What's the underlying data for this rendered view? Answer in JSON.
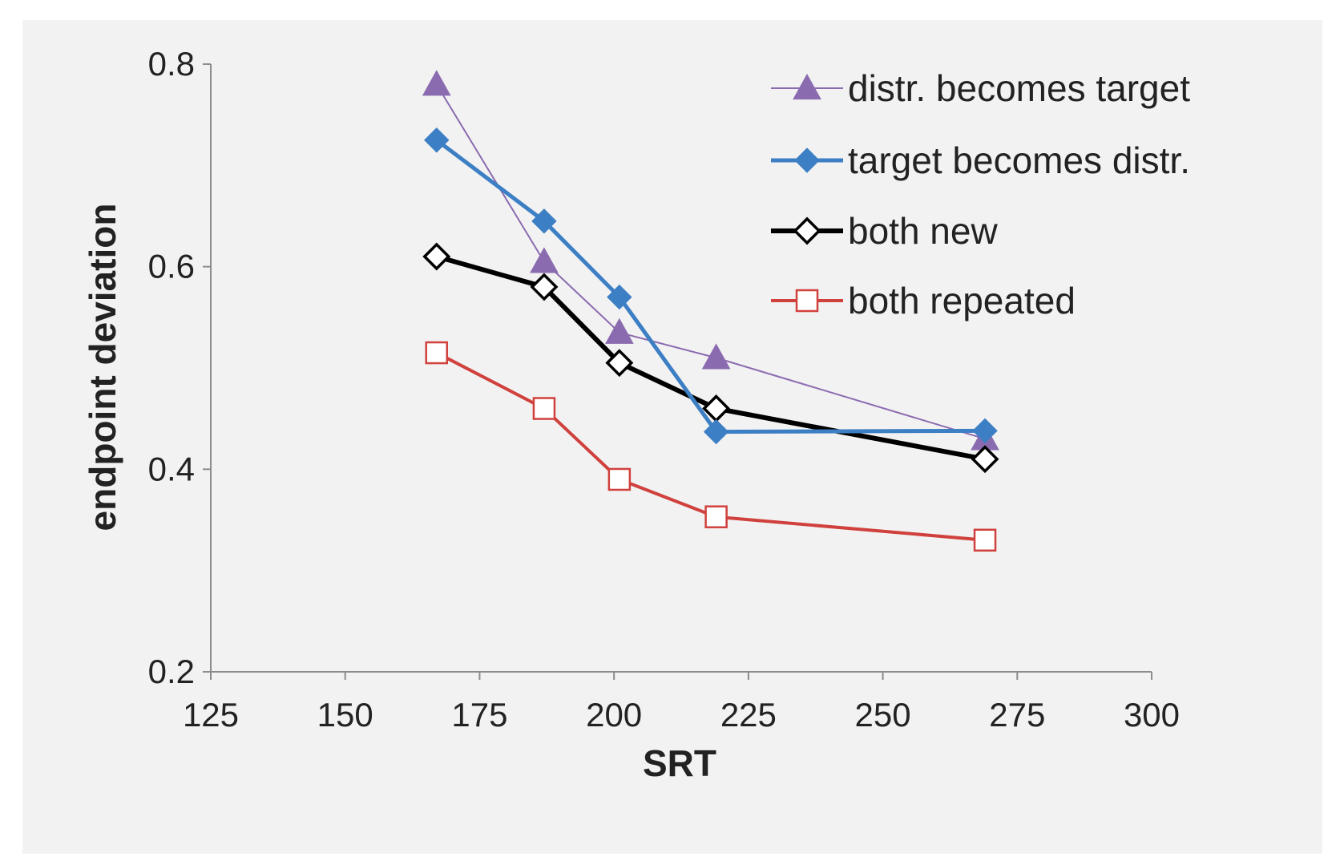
{
  "chart_data": {
    "type": "line",
    "xlabel": "SRT",
    "ylabel": "endpoint deviation",
    "xlim": [
      125,
      300
    ],
    "ylim": [
      0.2,
      0.8
    ],
    "x_ticks": [
      "125",
      "150",
      "175",
      "200",
      "225",
      "250",
      "275",
      "300"
    ],
    "y_ticks": [
      "0.2",
      "0.4",
      "0.6",
      "0.8"
    ],
    "grid": false,
    "legend_position": "top-right",
    "series": [
      {
        "name": "distr. becomes target",
        "color": "#8b6bb0",
        "marker": "triangle",
        "x": [
          167,
          187,
          201,
          219,
          269
        ],
        "y": [
          0.78,
          0.605,
          0.535,
          0.51,
          0.43
        ]
      },
      {
        "name": "target becomes distr.",
        "color": "#3d7fc4",
        "marker": "diamond",
        "x": [
          167,
          187,
          201,
          219,
          269
        ],
        "y": [
          0.725,
          0.645,
          0.57,
          0.437,
          0.438
        ]
      },
      {
        "name": "both new",
        "color": "#000000",
        "marker": "open-diamond",
        "x": [
          167,
          187,
          201,
          219,
          269
        ],
        "y": [
          0.61,
          0.58,
          0.505,
          0.46,
          0.41
        ]
      },
      {
        "name": "both repeated",
        "color": "#d0413d",
        "marker": "open-square",
        "x": [
          167,
          187,
          201,
          219,
          269
        ],
        "y": [
          0.515,
          0.46,
          0.39,
          0.353,
          0.33
        ]
      }
    ]
  }
}
